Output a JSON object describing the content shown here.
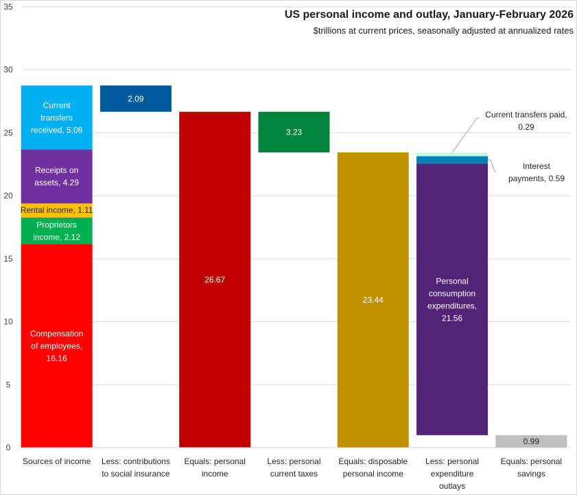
{
  "chart_data": {
    "type": "bar",
    "subtype": "waterfall-stacked",
    "title": "US personal income and outlay, January-February 2026",
    "subtitle": "$trillions at current prices, seasonally adjusted at annualized rates",
    "xlabel": "",
    "ylabel": "",
    "ylim": [
      0,
      35
    ],
    "yticks": [
      0,
      5,
      10,
      15,
      20,
      25,
      30,
      35
    ],
    "grid": true,
    "legend": "none",
    "categories": [
      [
        "Sources of income"
      ],
      [
        "Less: contributions",
        "to social insurance"
      ],
      [
        "Equals: personal",
        "income"
      ],
      [
        "Less: personal",
        "current taxes"
      ],
      [
        "Equals: disposable",
        "personal income"
      ],
      [
        "Less: personal",
        "expenditure",
        "outlays"
      ],
      [
        "Equals: personal",
        "savings"
      ]
    ],
    "segments": [
      {
        "category": 0,
        "name": "Compensation of employees",
        "value": 16.16,
        "base": 0,
        "color": "#ff0000",
        "label": [
          "Compensation",
          "of employees,",
          "16.16"
        ],
        "label_color": "#ffffff"
      },
      {
        "category": 0,
        "name": "Proprietors income",
        "value": 2.12,
        "base": 16.16,
        "color": "#00b050",
        "label": [
          "Proprietors",
          "income, 2.12"
        ],
        "label_color": "#ffffff"
      },
      {
        "category": 0,
        "name": "Rental income",
        "value": 1.11,
        "base": 18.28,
        "color": "#ffc000",
        "label": [
          "Rental income, 1.11"
        ],
        "label_color": "#262626",
        "small": true
      },
      {
        "category": 0,
        "name": "Receipts on assets",
        "value": 4.29,
        "base": 19.39,
        "color": "#7030a0",
        "label": [
          "Receipts on",
          "assets, 4.29"
        ],
        "label_color": "#ffffff"
      },
      {
        "category": 0,
        "name": "Current transfers received",
        "value": 5.08,
        "base": 23.68,
        "color": "#00b0f0",
        "label": [
          "Current",
          "transfers",
          "received, 5.08"
        ],
        "label_color": "#ffffff"
      },
      {
        "category": 1,
        "name": "Contributions to social insurance",
        "value": 2.09,
        "base": 26.67,
        "color": "#005a9c",
        "label": [
          "2.09"
        ],
        "label_color": "#ffffff"
      },
      {
        "category": 2,
        "name": "Personal income",
        "value": 26.67,
        "base": 0,
        "color": "#c00000",
        "label": [
          "26.67"
        ],
        "label_color": "#ffffff"
      },
      {
        "category": 3,
        "name": "Personal current taxes",
        "value": 3.23,
        "base": 23.44,
        "color": "#00843d",
        "label": [
          "3.23"
        ],
        "label_color": "#ffffff"
      },
      {
        "category": 4,
        "name": "Disposable personal income",
        "value": 23.44,
        "base": 0,
        "color": "#bf9000",
        "label": [
          "23.44"
        ],
        "label_color": "#ffffff"
      },
      {
        "category": 5,
        "name": "Personal consumption expenditures",
        "value": 21.56,
        "base": 0.99,
        "color": "#532378",
        "label": [
          "Personal",
          "consumption",
          "expenditures,",
          "21.56"
        ],
        "label_color": "#ffffff"
      },
      {
        "category": 5,
        "name": "Interest payments",
        "value": 0.59,
        "base": 22.55,
        "color": "#0080b4",
        "label": [],
        "label_color": "#262626"
      },
      {
        "category": 5,
        "name": "Current transfers paid",
        "value": 0.29,
        "base": 23.14,
        "color": "#c6f7e2",
        "label": [],
        "label_color": "#262626"
      },
      {
        "category": 6,
        "name": "Personal savings",
        "value": 0.99,
        "base": 0,
        "color": "#bfbfbf",
        "label": [
          "0.99"
        ],
        "label_color": "#262626"
      }
    ],
    "callouts": [
      {
        "segment": "Current transfers paid",
        "text": [
          "Current transfers paid,",
          "0.29"
        ]
      },
      {
        "segment": "Interest payments",
        "text": [
          "Interest",
          "payments, 0.59"
        ]
      }
    ]
  }
}
